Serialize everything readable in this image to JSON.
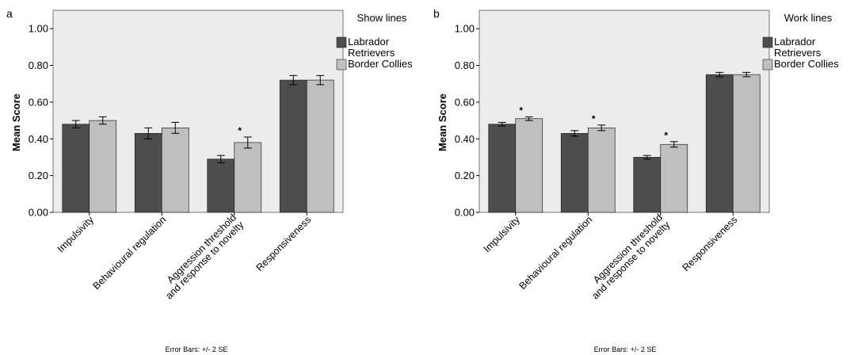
{
  "chart_data": [
    {
      "type": "bar",
      "panel_label": "a",
      "ylabel": "Mean Score",
      "ylim": [
        0,
        1.1
      ],
      "yticks": [
        "0.00",
        "0.20",
        "0.40",
        "0.60",
        "0.80",
        "1.00"
      ],
      "yticks_values": [
        0,
        0.2,
        0.4,
        0.6,
        0.8,
        1.0
      ],
      "categories": [
        "Impulsivity",
        "Behavioural regulation",
        "Aggression threshold|and response to novelty",
        "Responsiveness"
      ],
      "legend_title": "Show lines",
      "series": [
        {
          "name": "Labrador|Retrievers",
          "color": "#4d4d4d",
          "values": [
            0.48,
            0.43,
            0.29,
            0.72
          ],
          "err": [
            0.02,
            0.03,
            0.02,
            0.025
          ]
        },
        {
          "name": "Border Collies",
          "color": "#bfbfbf",
          "values": [
            0.5,
            0.46,
            0.38,
            0.72
          ],
          "err": [
            0.02,
            0.03,
            0.03,
            0.025
          ]
        }
      ],
      "significant": [
        false,
        false,
        true,
        false
      ],
      "footnote": "Error Bars: +/- 2 SE",
      "background": "#ececec"
    },
    {
      "type": "bar",
      "panel_label": "b",
      "ylabel": "Mean Score",
      "ylim": [
        0,
        1.1
      ],
      "yticks": [
        "0.00",
        "0.20",
        "0.40",
        "0.60",
        "0.80",
        "1.00"
      ],
      "yticks_values": [
        0,
        0.2,
        0.4,
        0.6,
        0.8,
        1.0
      ],
      "categories": [
        "Impulsivity",
        "Behavioural regulation",
        "Aggression threshold|and response to novelty",
        "Responsiveness"
      ],
      "legend_title": "Work lines",
      "series": [
        {
          "name": "Labrador|Retrievers",
          "color": "#4d4d4d",
          "values": [
            0.48,
            0.43,
            0.3,
            0.75
          ],
          "err": [
            0.01,
            0.015,
            0.01,
            0.012
          ]
        },
        {
          "name": "Border Collies",
          "color": "#bfbfbf",
          "values": [
            0.51,
            0.46,
            0.37,
            0.75
          ],
          "err": [
            0.01,
            0.015,
            0.015,
            0.012
          ]
        }
      ],
      "significant": [
        true,
        true,
        true,
        false
      ],
      "footnote": "Error Bars: +/- 2 SE",
      "background": "#ececec"
    }
  ]
}
